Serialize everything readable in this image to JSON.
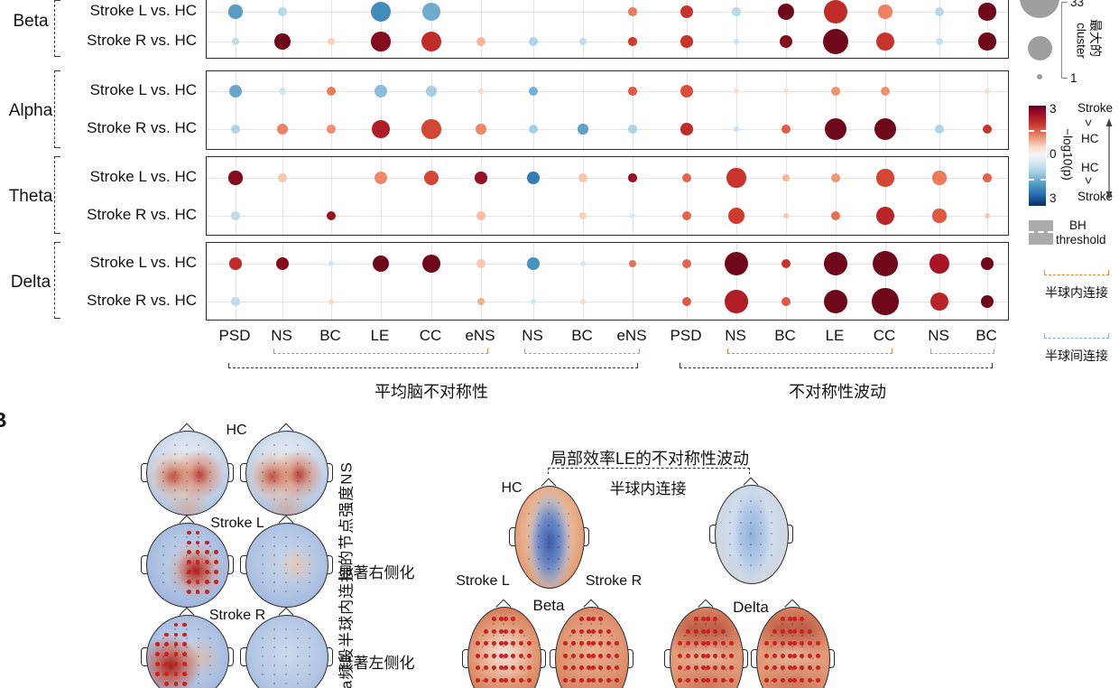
{
  "panel_a": {
    "row_labels": [
      "Stroke L vs. HC",
      "Stroke R vs. HC"
    ],
    "group_labels": {
      "mean": "平均脑不对称性",
      "fluct": "不对称性波动"
    },
    "chart_data": {
      "type": "scatter",
      "subtype": "bubble-matrix",
      "value_meaning": "signed -log10(p); positive(red)=Stroke>HC, negative(blue)=HC>Stroke, range -3..3",
      "size_meaning": "largest cluster size, range 1..33; 0 means no dot",
      "columns": [
        "PSD",
        "NS",
        "BC",
        "LE",
        "CC",
        "eNS",
        "NS",
        "BC",
        "eNS",
        "PSD",
        "NS",
        "BC",
        "LE",
        "CC",
        "NS",
        "BC"
      ],
      "column_groups": [
        {
          "label": "平均脑不对称性",
          "columns_span": [
            0,
            8
          ]
        },
        {
          "label": "不对称性波动",
          "columns_span": [
            9,
            15
          ]
        }
      ],
      "intra_hemispheric_spans": [
        [
          1,
          5
        ],
        [
          10,
          13
        ]
      ],
      "inter_hemispheric_spans": [
        [
          6,
          8
        ],
        [
          14,
          15
        ]
      ],
      "rows": [
        {
          "band": "Beta",
          "comparison": "Stroke L vs. HC",
          "dots": [
            [
              -2,
              10
            ],
            [
              -0.7,
              4
            ],
            [
              0,
              0
            ],
            [
              -2.3,
              20
            ],
            [
              -1.7,
              16
            ],
            [
              0,
              0
            ],
            [
              0,
              0
            ],
            [
              0,
              0
            ],
            [
              1.6,
              4
            ],
            [
              2.3,
              9
            ],
            [
              -0.7,
              4
            ],
            [
              3,
              14
            ],
            [
              2.4,
              26
            ],
            [
              1.5,
              10
            ],
            [
              -0.7,
              5
            ],
            [
              3,
              15
            ]
          ]
        },
        {
          "band": "Beta",
          "comparison": "Stroke R vs. HC",
          "dots": [
            [
              -0.6,
              3
            ],
            [
              3,
              13
            ],
            [
              0.5,
              3
            ],
            [
              2.9,
              18
            ],
            [
              2.4,
              20
            ],
            [
              0.8,
              5
            ],
            [
              -0.8,
              5
            ],
            [
              -0.6,
              3
            ],
            [
              2.2,
              4
            ],
            [
              2.3,
              8
            ],
            [
              -0.5,
              2
            ],
            [
              2.9,
              9
            ],
            [
              3,
              28
            ],
            [
              2.3,
              16
            ],
            [
              -0.5,
              3
            ],
            [
              3,
              15
            ]
          ]
        },
        {
          "band": "Alpha",
          "comparison": "Stroke L vs. HC",
          "dots": [
            [
              -1.8,
              9
            ],
            [
              -0.4,
              3
            ],
            [
              1.6,
              5
            ],
            [
              -1.3,
              9
            ],
            [
              -0.9,
              6
            ],
            [
              0.4,
              2
            ],
            [
              -1.6,
              5
            ],
            [
              0,
              0
            ],
            [
              1.9,
              4
            ],
            [
              2,
              9
            ],
            [
              0.3,
              2
            ],
            [
              0.3,
              2
            ],
            [
              1.3,
              5
            ],
            [
              1.3,
              5
            ],
            [
              0,
              0
            ],
            [
              0.3,
              2
            ]
          ]
        },
        {
          "band": "Alpha",
          "comparison": "Stroke R vs. HC",
          "dots": [
            [
              -0.8,
              5
            ],
            [
              1.5,
              7
            ],
            [
              1.3,
              4
            ],
            [
              2.6,
              16
            ],
            [
              2.1,
              18
            ],
            [
              1.4,
              6
            ],
            [
              -0.9,
              5
            ],
            [
              -1.9,
              6
            ],
            [
              -0.8,
              4
            ],
            [
              2.4,
              8
            ],
            [
              -0.5,
              2
            ],
            [
              1.9,
              5
            ],
            [
              3,
              22
            ],
            [
              3,
              22
            ],
            [
              -0.8,
              5
            ],
            [
              2.3,
              5
            ]
          ]
        },
        {
          "band": "Theta",
          "comparison": "Stroke L vs. HC",
          "dots": [
            [
              2.9,
              10
            ],
            [
              0.6,
              4
            ],
            [
              0,
              0
            ],
            [
              1.4,
              9
            ],
            [
              2.1,
              12
            ],
            [
              2.8,
              8
            ],
            [
              -2.5,
              8
            ],
            [
              0.6,
              4
            ],
            [
              2.8,
              4
            ],
            [
              1.8,
              5
            ],
            [
              2.3,
              18
            ],
            [
              0.8,
              3
            ],
            [
              1.2,
              5
            ],
            [
              2.1,
              15
            ],
            [
              1.6,
              10
            ],
            [
              1.8,
              4
            ]
          ]
        },
        {
          "band": "Theta",
          "comparison": "Stroke R vs. HC",
          "dots": [
            [
              -0.6,
              4
            ],
            [
              0,
              0
            ],
            [
              2.8,
              5
            ],
            [
              0,
              0
            ],
            [
              0,
              0
            ],
            [
              0.7,
              4
            ],
            [
              0,
              0
            ],
            [
              0.5,
              3
            ],
            [
              -0.3,
              2
            ],
            [
              1.8,
              5
            ],
            [
              2.2,
              14
            ],
            [
              0.6,
              2
            ],
            [
              1.7,
              5
            ],
            [
              2.5,
              16
            ],
            [
              1.9,
              10
            ],
            [
              0.6,
              2
            ]
          ]
        },
        {
          "band": "Delta",
          "comparison": "Stroke L vs. HC",
          "dots": [
            [
              2.4,
              8
            ],
            [
              2.9,
              9
            ],
            [
              -0.4,
              2
            ],
            [
              3,
              14
            ],
            [
              3,
              16
            ],
            [
              0.6,
              4
            ],
            [
              -2.2,
              8
            ],
            [
              -0.4,
              2
            ],
            [
              1.7,
              3
            ],
            [
              1.8,
              5
            ],
            [
              3,
              26
            ],
            [
              2.3,
              5
            ],
            [
              3,
              26
            ],
            [
              3,
              28
            ],
            [
              2.7,
              18
            ],
            [
              3,
              8
            ]
          ]
        },
        {
          "band": "Delta",
          "comparison": "Stroke R vs. HC",
          "dots": [
            [
              -0.6,
              4
            ],
            [
              0,
              0
            ],
            [
              0.4,
              2
            ],
            [
              0,
              0
            ],
            [
              0,
              0
            ],
            [
              0.9,
              3
            ],
            [
              -0.4,
              2
            ],
            [
              0.4,
              2
            ],
            [
              0,
              0
            ],
            [
              1.9,
              5
            ],
            [
              2.6,
              24
            ],
            [
              1.9,
              5
            ],
            [
              3,
              26
            ],
            [
              3,
              30
            ],
            [
              2.5,
              17
            ],
            [
              3,
              9
            ]
          ]
        }
      ],
      "bands": [
        "Beta",
        "Alpha",
        "Theta",
        "Delta"
      ]
    }
  },
  "legend": {
    "size": {
      "max": "33",
      "min": "1",
      "label_zh": "最大的",
      "label_en": "cluster"
    },
    "colorbar": {
      "tick_top": "3",
      "tick_mid": "0",
      "tick_bottom": "3",
      "axis_label": "−log10(p)",
      "upper_word1": "Stroke",
      "upper_word2": ">",
      "upper_word3": "HC",
      "lower_word1": "HC",
      "lower_word2": ">",
      "lower_word3": "Stroke"
    },
    "bh": {
      "line1": "BH",
      "line2": "threshold"
    },
    "intra": {
      "label": "半球内连接",
      "color": "#e2873b"
    },
    "inter": {
      "label": "半球间连接",
      "color": "#7ab0d4"
    }
  },
  "panel_b": {
    "panel_letter": "B",
    "y_axis_label": "ta频段半球内连接的节点强度NS",
    "left_group": {
      "row1_label": "HC",
      "row2_label": "Stroke L",
      "row3_label": "Stroke R",
      "annotation_right": "显著右侧化",
      "annotation_left": "显著左侧化"
    },
    "right_group": {
      "title": "局部效率LE的不对称性波动",
      "subtitle": "半球内连接",
      "hc_label": "HC",
      "stroke_l_label": "Stroke L",
      "stroke_r_label": "Stroke R",
      "band_left": "Beta",
      "band_right": "Delta"
    }
  }
}
